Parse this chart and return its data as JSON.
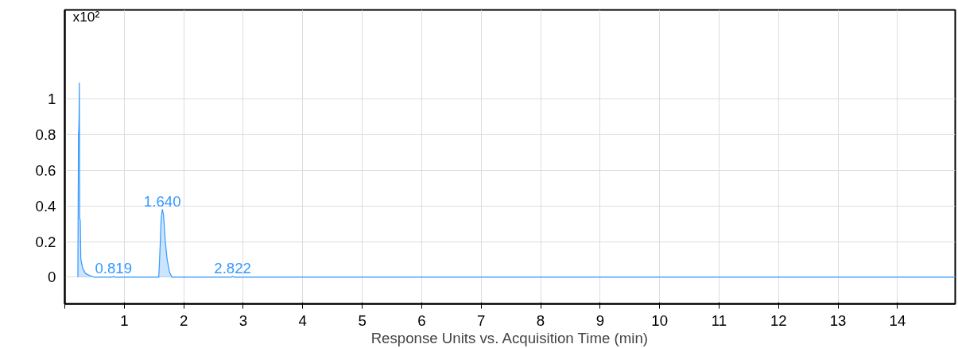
{
  "chart_data": {
    "type": "area",
    "xlabel": "Response Units vs. Acquisition Time (min)",
    "annotations": [
      "x10²",
      {
        "text": "0.819",
        "x": 0.819,
        "y": 0.005
      },
      {
        "text": "1.640",
        "x": 1.64,
        "y": 0.38
      },
      {
        "text": "2.822",
        "x": 2.822,
        "y": 0.005
      }
    ],
    "x": [
      0.22,
      0.23,
      0.235,
      0.24,
      0.245,
      0.25,
      0.26,
      0.27,
      0.3,
      0.35,
      0.45,
      0.5,
      0.8,
      0.819,
      0.84,
      1.58,
      1.6,
      1.62,
      1.64,
      1.66,
      1.69,
      1.72,
      1.76,
      1.8,
      2.8,
      2.822,
      2.85,
      14.97
    ],
    "series": [
      {
        "color": "#3399ff",
        "values": [
          0,
          0.8,
          0.83,
          0.9,
          1.09,
          0.33,
          0.32,
          0.1,
          0.05,
          0.02,
          0.005,
          0,
          0,
          0.005,
          0,
          0,
          0.15,
          0.33,
          0.38,
          0.35,
          0.2,
          0.1,
          0.03,
          0,
          0,
          0.005,
          0,
          0
        ]
      }
    ],
    "xlim": [
      0,
      14.97
    ],
    "ylim": [
      -0.15,
      1.5
    ],
    "xticks": [
      {
        "value": 0,
        "label": null
      },
      1,
      2,
      3,
      4,
      5,
      6,
      7,
      8,
      9,
      10,
      11,
      12,
      13,
      14
    ],
    "yticks": [
      0,
      0.2,
      0.4,
      0.6,
      0.8,
      1
    ],
    "grid": true
  }
}
